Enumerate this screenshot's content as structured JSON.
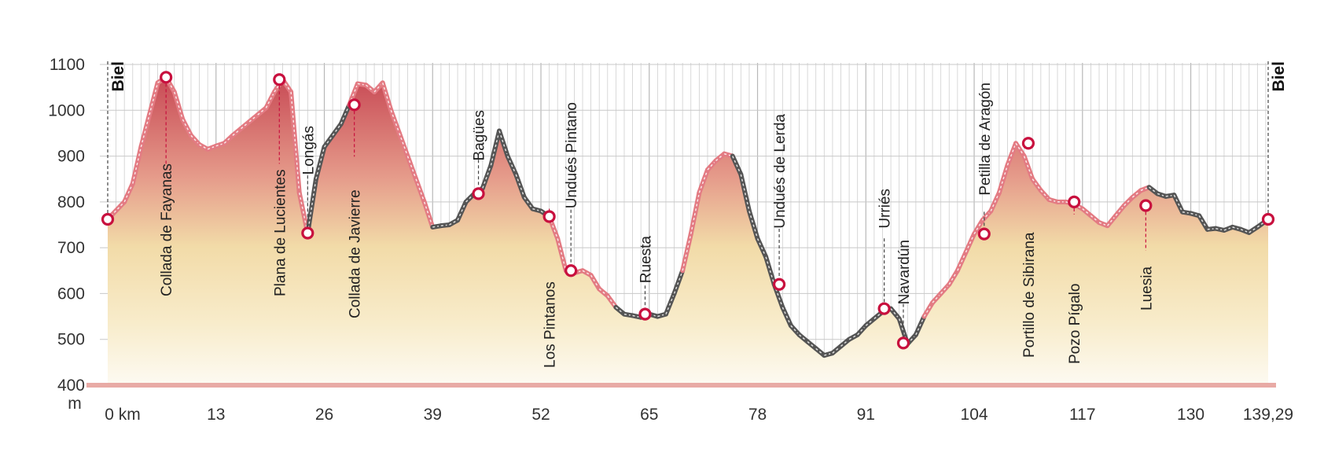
{
  "chart_data": {
    "type": "area",
    "title": "",
    "xlabel": "",
    "ylabel": "",
    "y_unit": "m",
    "x_unit": "km",
    "xlim": [
      0,
      139.29
    ],
    "ylim": [
      400,
      1100
    ],
    "x_ticks": [
      0,
      13,
      26,
      39,
      52,
      65,
      78,
      91,
      104,
      117,
      130,
      139.29
    ],
    "x_tick_labels": [
      "0 km",
      "13",
      "26",
      "39",
      "52",
      "65",
      "78",
      "91",
      "104",
      "117",
      "130",
      "139,29"
    ],
    "y_ticks": [
      400,
      500,
      600,
      700,
      800,
      900,
      1000,
      1100
    ],
    "y_tick_labels": [
      "400",
      "500",
      "600",
      "700",
      "800",
      "900",
      "1000",
      "1100"
    ],
    "grid": true,
    "profile": {
      "x": [
        0,
        2,
        3,
        4,
        5,
        6,
        7,
        8,
        9,
        10,
        11,
        12,
        13,
        14,
        15,
        16,
        17,
        18,
        19,
        20,
        21,
        22,
        23,
        24,
        25,
        26,
        27,
        28,
        29,
        30,
        31,
        32,
        33,
        34,
        35,
        36,
        37,
        38,
        39,
        40,
        41,
        42,
        43,
        44,
        45,
        46,
        47,
        48,
        49,
        50,
        51,
        52,
        53,
        54,
        55,
        56,
        57,
        58,
        59,
        60,
        61,
        62,
        63,
        64,
        65,
        66,
        67,
        68,
        69,
        70,
        71,
        72,
        73,
        74,
        75,
        76,
        77,
        78,
        79,
        80,
        81,
        82,
        83,
        84,
        85,
        86,
        87,
        88,
        89,
        90,
        91,
        92,
        93,
        94,
        95,
        96,
        97,
        98,
        99,
        100,
        101,
        102,
        103,
        104,
        105,
        106,
        107,
        108,
        109,
        110,
        111,
        112,
        113,
        114,
        115,
        116,
        117,
        118,
        119,
        120,
        121,
        122,
        123,
        124,
        125,
        126,
        127,
        128,
        129,
        130,
        131,
        132,
        133,
        134,
        135,
        136,
        137,
        138,
        139.29
      ],
      "y": [
        762,
        800,
        840,
        920,
        990,
        1060,
        1072,
        1040,
        980,
        945,
        925,
        915,
        922,
        928,
        945,
        960,
        975,
        990,
        1005,
        1040,
        1067,
        1040,
        820,
        732,
        850,
        920,
        945,
        970,
        1012,
        1058,
        1055,
        1040,
        1060,
        1000,
        950,
        900,
        850,
        800,
        745,
        748,
        750,
        760,
        800,
        818,
        830,
        880,
        955,
        900,
        860,
        810,
        785,
        780,
        768,
        720,
        650,
        645,
        650,
        640,
        610,
        595,
        570,
        555,
        552,
        548,
        555,
        550,
        555,
        600,
        650,
        730,
        820,
        870,
        890,
        905,
        900,
        860,
        780,
        720,
        680,
        620,
        570,
        530,
        510,
        495,
        480,
        465,
        470,
        485,
        500,
        510,
        530,
        545,
        560,
        567,
        545,
        490,
        510,
        550,
        580,
        600,
        620,
        650,
        690,
        730,
        760,
        780,
        820,
        880,
        928,
        900,
        850,
        825,
        805,
        800,
        800,
        795,
        785,
        770,
        755,
        748,
        770,
        792,
        810,
        825,
        832,
        818,
        812,
        815,
        778,
        775,
        770,
        740,
        742,
        738,
        745,
        740,
        733,
        745,
        762
      ],
      "line_colors": {
        "asphalt": "#e37b83",
        "track": "#555555"
      },
      "track_segments_km": [
        [
          24,
          29
        ],
        [
          39,
          53
        ],
        [
          61,
          69
        ],
        [
          75,
          98
        ],
        [
          125,
          139.29
        ]
      ]
    },
    "waypoints": [
      {
        "name": "Biel",
        "km": 0,
        "elevation": 762,
        "bold": true
      },
      {
        "name": "Collada de Fayanas",
        "km": 7,
        "elevation": 1072
      },
      {
        "name": "Plana de Lucientes",
        "km": 20.6,
        "elevation": 1067
      },
      {
        "name": "Longás",
        "km": 24,
        "elevation": 732
      },
      {
        "name": "Collada de Javierre",
        "km": 29.6,
        "elevation": 1012
      },
      {
        "name": "Bagües",
        "km": 44.5,
        "elevation": 818
      },
      {
        "name": "Los Pintanos",
        "km": 53,
        "elevation": 768
      },
      {
        "name": "Undués Pintano",
        "km": 55.6,
        "elevation": 650
      },
      {
        "name": "Ruesta",
        "km": 64.5,
        "elevation": 555
      },
      {
        "name": "Undués de Lerda",
        "km": 80.6,
        "elevation": 620
      },
      {
        "name": "Urriés",
        "km": 93.2,
        "elevation": 567
      },
      {
        "name": "Navardún",
        "km": 95.5,
        "elevation": 492
      },
      {
        "name": "Petilla de Aragón",
        "km": 105.2,
        "elevation": 730
      },
      {
        "name": "Portillo de Sibirana",
        "km": 110.5,
        "elevation": 928
      },
      {
        "name": "Pozo Pígalo",
        "km": 116,
        "elevation": 800
      },
      {
        "name": "Luesia",
        "km": 124.6,
        "elevation": 792
      },
      {
        "name": "Biel",
        "km": 139.29,
        "elevation": 762,
        "bold": true
      }
    ],
    "colors": {
      "marker_stroke": "#c8103e",
      "marker_fill": "#ffffff",
      "guide_line": "#c8103e",
      "axis_text": "#333333",
      "baseline": "#e8aaa5",
      "fill_high": "#c9505a",
      "fill_mid": "#f0d9a6",
      "fill_low": "#fbf4e4",
      "grid": "#cfcfcf"
    }
  }
}
